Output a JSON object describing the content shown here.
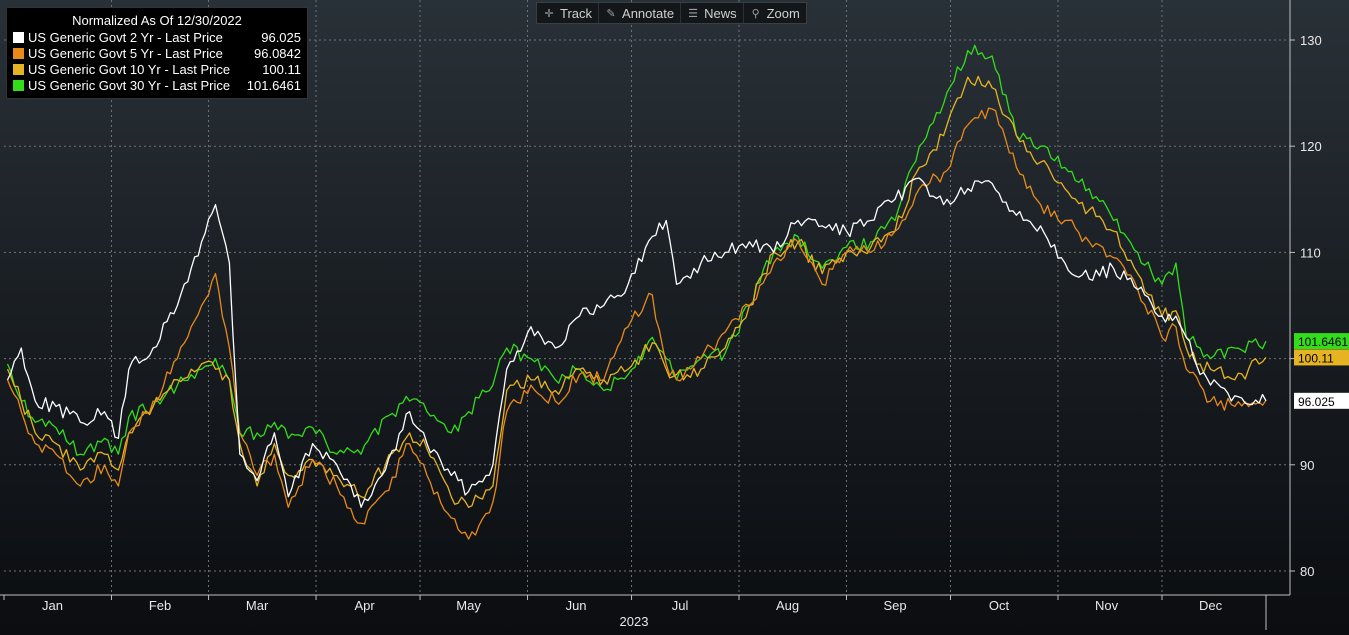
{
  "toolbar": {
    "track_label": "Track",
    "annotate_label": "Annotate",
    "news_label": "News",
    "zoom_label": "Zoom"
  },
  "legend": {
    "title": "Normalized As Of 12/30/2022"
  },
  "colors": {
    "grid": "#6d7479",
    "axis_text": "#e8e8e8",
    "background_top": "#293138",
    "background_bottom": "#0b0d10"
  },
  "chart_data": {
    "type": "line",
    "title": "",
    "xlabel": "2023",
    "ylabel": "",
    "ylim": [
      78,
      134
    ],
    "yticks": [
      80,
      90,
      100,
      110,
      120,
      130
    ],
    "x_range": [
      "2023-01-02",
      "2023-12-31"
    ],
    "x_months": [
      "Jan",
      "Feb",
      "Mar",
      "Apr",
      "May",
      "Jun",
      "Jul",
      "Aug",
      "Sep",
      "Oct",
      "Nov",
      "Dec"
    ],
    "grid": true,
    "legend_position": "top-left",
    "series": [
      {
        "name": "US Generic Govt 2 Yr - Last Price",
        "last_label": "96.025",
        "color": "#ffffff",
        "points": [
          [
            "2023-01-02",
            98
          ],
          [
            "2023-01-06",
            101
          ],
          [
            "2023-01-10",
            96
          ],
          [
            "2023-01-16",
            95.5
          ],
          [
            "2023-01-23",
            94
          ],
          [
            "2023-01-30",
            95
          ],
          [
            "2023-02-03",
            92.5
          ],
          [
            "2023-02-06",
            99
          ],
          [
            "2023-02-13",
            101
          ],
          [
            "2023-02-20",
            105
          ],
          [
            "2023-02-24",
            108.5
          ],
          [
            "2023-02-27",
            111
          ],
          [
            "2023-03-03",
            114.5
          ],
          [
            "2023-03-07",
            109
          ],
          [
            "2023-03-10",
            91
          ],
          [
            "2023-03-15",
            88.5
          ],
          [
            "2023-03-20",
            93
          ],
          [
            "2023-03-24",
            87
          ],
          [
            "2023-03-31",
            92
          ],
          [
            "2023-04-07",
            90
          ],
          [
            "2023-04-14",
            86
          ],
          [
            "2023-04-21",
            89.5
          ],
          [
            "2023-04-28",
            95
          ],
          [
            "2023-05-03",
            92
          ],
          [
            "2023-05-10",
            89
          ],
          [
            "2023-05-15",
            87.5
          ],
          [
            "2023-05-22",
            90
          ],
          [
            "2023-05-26",
            99
          ],
          [
            "2023-06-02",
            103
          ],
          [
            "2023-06-09",
            101
          ],
          [
            "2023-06-16",
            104
          ],
          [
            "2023-06-23",
            105
          ],
          [
            "2023-06-30",
            107
          ],
          [
            "2023-07-07",
            111.5
          ],
          [
            "2023-07-11",
            113
          ],
          [
            "2023-07-14",
            107
          ],
          [
            "2023-07-21",
            109
          ],
          [
            "2023-07-28",
            110
          ],
          [
            "2023-08-04",
            111
          ],
          [
            "2023-08-11",
            110
          ],
          [
            "2023-08-18",
            113
          ],
          [
            "2023-08-25",
            112.5
          ],
          [
            "2023-09-01",
            112
          ],
          [
            "2023-09-08",
            113
          ],
          [
            "2023-09-15",
            115
          ],
          [
            "2023-09-22",
            117
          ],
          [
            "2023-09-29",
            114.5
          ],
          [
            "2023-10-06",
            116
          ],
          [
            "2023-10-13",
            116.5
          ],
          [
            "2023-10-20",
            113.5
          ],
          [
            "2023-10-27",
            112.5
          ],
          [
            "2023-11-03",
            109
          ],
          [
            "2023-11-10",
            107.5
          ],
          [
            "2023-11-17",
            108.5
          ],
          [
            "2023-11-24",
            106.5
          ],
          [
            "2023-12-01",
            104
          ],
          [
            "2023-12-05",
            104
          ],
          [
            "2023-12-08",
            102
          ],
          [
            "2023-12-12",
            98.5
          ],
          [
            "2023-12-15",
            97.5
          ],
          [
            "2023-12-22",
            96.5
          ],
          [
            "2023-12-31",
            96.025
          ]
        ]
      },
      {
        "name": "US Generic Govt 5 Yr - Last Price",
        "last_label": "96.0842",
        "color": "#e88a1a",
        "points": [
          [
            "2023-01-02",
            98
          ],
          [
            "2023-01-06",
            95
          ],
          [
            "2023-01-10",
            92
          ],
          [
            "2023-01-16",
            91
          ],
          [
            "2023-01-23",
            88
          ],
          [
            "2023-01-30",
            90
          ],
          [
            "2023-02-03",
            88
          ],
          [
            "2023-02-06",
            93
          ],
          [
            "2023-02-13",
            96
          ],
          [
            "2023-02-20",
            100
          ],
          [
            "2023-02-24",
            103
          ],
          [
            "2023-02-27",
            105
          ],
          [
            "2023-03-03",
            108
          ],
          [
            "2023-03-07",
            101
          ],
          [
            "2023-03-10",
            93
          ],
          [
            "2023-03-15",
            89
          ],
          [
            "2023-03-20",
            91
          ],
          [
            "2023-03-24",
            86
          ],
          [
            "2023-03-31",
            90.5
          ],
          [
            "2023-04-07",
            88
          ],
          [
            "2023-04-14",
            84.5
          ],
          [
            "2023-04-21",
            87.5
          ],
          [
            "2023-04-28",
            92
          ],
          [
            "2023-05-03",
            89
          ],
          [
            "2023-05-10",
            85
          ],
          [
            "2023-05-15",
            83
          ],
          [
            "2023-05-22",
            86.5
          ],
          [
            "2023-05-26",
            95
          ],
          [
            "2023-06-02",
            97.5
          ],
          [
            "2023-06-09",
            96
          ],
          [
            "2023-06-16",
            98.5
          ],
          [
            "2023-06-23",
            98
          ],
          [
            "2023-06-30",
            103
          ],
          [
            "2023-07-07",
            106
          ],
          [
            "2023-07-11",
            99.5
          ],
          [
            "2023-07-14",
            98
          ],
          [
            "2023-07-21",
            100
          ],
          [
            "2023-07-28",
            102.5
          ],
          [
            "2023-08-04",
            105
          ],
          [
            "2023-08-11",
            109
          ],
          [
            "2023-08-18",
            111
          ],
          [
            "2023-08-25",
            107
          ],
          [
            "2023-09-01",
            110
          ],
          [
            "2023-09-08",
            110
          ],
          [
            "2023-09-15",
            112
          ],
          [
            "2023-09-22",
            116
          ],
          [
            "2023-09-29",
            117.5
          ],
          [
            "2023-10-06",
            122
          ],
          [
            "2023-10-13",
            123.5
          ],
          [
            "2023-10-20",
            118
          ],
          [
            "2023-10-27",
            114.5
          ],
          [
            "2023-11-03",
            113
          ],
          [
            "2023-11-10",
            111
          ],
          [
            "2023-11-17",
            109.5
          ],
          [
            "2023-11-24",
            106.5
          ],
          [
            "2023-12-01",
            102
          ],
          [
            "2023-12-05",
            103
          ],
          [
            "2023-12-08",
            99
          ],
          [
            "2023-12-12",
            97.5
          ],
          [
            "2023-12-15",
            96
          ],
          [
            "2023-12-22",
            95.5
          ],
          [
            "2023-12-31",
            96.0842
          ]
        ]
      },
      {
        "name": "US Generic Govt 10 Yr - Last Price",
        "last_label": "100.11",
        "color": "#e6b422",
        "points": [
          [
            "2023-01-02",
            99
          ],
          [
            "2023-01-06",
            96
          ],
          [
            "2023-01-10",
            93
          ],
          [
            "2023-01-16",
            92
          ],
          [
            "2023-01-23",
            89.5
          ],
          [
            "2023-01-30",
            91
          ],
          [
            "2023-02-03",
            89.5
          ],
          [
            "2023-02-06",
            93
          ],
          [
            "2023-02-13",
            95.5
          ],
          [
            "2023-02-20",
            98
          ],
          [
            "2023-02-24",
            99
          ],
          [
            "2023-02-27",
            99.5
          ],
          [
            "2023-03-03",
            99
          ],
          [
            "2023-03-07",
            98
          ],
          [
            "2023-03-10",
            92
          ],
          [
            "2023-03-15",
            88
          ],
          [
            "2023-03-20",
            92
          ],
          [
            "2023-03-24",
            89
          ],
          [
            "2023-03-31",
            90.5
          ],
          [
            "2023-04-07",
            89
          ],
          [
            "2023-04-14",
            87
          ],
          [
            "2023-04-21",
            90
          ],
          [
            "2023-04-28",
            93
          ],
          [
            "2023-05-03",
            91.5
          ],
          [
            "2023-05-10",
            87
          ],
          [
            "2023-05-15",
            86
          ],
          [
            "2023-05-22",
            88
          ],
          [
            "2023-05-26",
            97
          ],
          [
            "2023-06-02",
            98
          ],
          [
            "2023-06-09",
            97
          ],
          [
            "2023-06-16",
            99
          ],
          [
            "2023-06-23",
            98
          ],
          [
            "2023-06-30",
            99
          ],
          [
            "2023-07-07",
            101.5
          ],
          [
            "2023-07-11",
            99
          ],
          [
            "2023-07-14",
            98.5
          ],
          [
            "2023-07-21",
            99
          ],
          [
            "2023-07-28",
            101
          ],
          [
            "2023-08-04",
            105
          ],
          [
            "2023-08-11",
            110
          ],
          [
            "2023-08-18",
            111
          ],
          [
            "2023-08-25",
            108
          ],
          [
            "2023-09-01",
            110
          ],
          [
            "2023-09-08",
            110.5
          ],
          [
            "2023-09-15",
            112
          ],
          [
            "2023-09-22",
            118
          ],
          [
            "2023-09-29",
            121
          ],
          [
            "2023-10-06",
            126.5
          ],
          [
            "2023-10-13",
            125.5
          ],
          [
            "2023-10-20",
            121
          ],
          [
            "2023-10-27",
            118.5
          ],
          [
            "2023-11-03",
            116
          ],
          [
            "2023-11-10",
            114
          ],
          [
            "2023-11-17",
            112
          ],
          [
            "2023-11-24",
            108
          ],
          [
            "2023-12-01",
            104
          ],
          [
            "2023-12-05",
            104.5
          ],
          [
            "2023-12-08",
            101
          ],
          [
            "2023-12-12",
            99.5
          ],
          [
            "2023-12-15",
            99
          ],
          [
            "2023-12-22",
            98
          ],
          [
            "2023-12-31",
            100.11
          ]
        ]
      },
      {
        "name": "US Generic Govt 30 Yr - Last Price",
        "last_label": "101.6461",
        "color": "#33dd1a",
        "points": [
          [
            "2023-01-02",
            99.5
          ],
          [
            "2023-01-06",
            96
          ],
          [
            "2023-01-10",
            94
          ],
          [
            "2023-01-16",
            93.5
          ],
          [
            "2023-01-23",
            91
          ],
          [
            "2023-01-30",
            92.5
          ],
          [
            "2023-02-03",
            91
          ],
          [
            "2023-02-06",
            94.5
          ],
          [
            "2023-02-13",
            95.5
          ],
          [
            "2023-02-20",
            97.5
          ],
          [
            "2023-02-24",
            98.5
          ],
          [
            "2023-02-27",
            99
          ],
          [
            "2023-03-03",
            100
          ],
          [
            "2023-03-07",
            98
          ],
          [
            "2023-03-10",
            93
          ],
          [
            "2023-03-15",
            93
          ],
          [
            "2023-03-20",
            94
          ],
          [
            "2023-03-24",
            92.5
          ],
          [
            "2023-03-31",
            93.5
          ],
          [
            "2023-04-07",
            91
          ],
          [
            "2023-04-14",
            91
          ],
          [
            "2023-04-21",
            94.5
          ],
          [
            "2023-04-28",
            96
          ],
          [
            "2023-05-03",
            95
          ],
          [
            "2023-05-10",
            93
          ],
          [
            "2023-05-15",
            95
          ],
          [
            "2023-05-22",
            97.5
          ],
          [
            "2023-05-26",
            101
          ],
          [
            "2023-06-02",
            100
          ],
          [
            "2023-06-09",
            98
          ],
          [
            "2023-06-16",
            99
          ],
          [
            "2023-06-23",
            97
          ],
          [
            "2023-06-30",
            98.5
          ],
          [
            "2023-07-07",
            102
          ],
          [
            "2023-07-11",
            100
          ],
          [
            "2023-07-14",
            98
          ],
          [
            "2023-07-21",
            100
          ],
          [
            "2023-07-28",
            100.5
          ],
          [
            "2023-08-04",
            105
          ],
          [
            "2023-08-11",
            110
          ],
          [
            "2023-08-18",
            111.5
          ],
          [
            "2023-08-25",
            108.5
          ],
          [
            "2023-09-01",
            110.5
          ],
          [
            "2023-09-08",
            111
          ],
          [
            "2023-09-15",
            113
          ],
          [
            "2023-09-22",
            120
          ],
          [
            "2023-09-29",
            124
          ],
          [
            "2023-10-06",
            129
          ],
          [
            "2023-10-13",
            128.5
          ],
          [
            "2023-10-20",
            121
          ],
          [
            "2023-10-27",
            120
          ],
          [
            "2023-11-03",
            118
          ],
          [
            "2023-11-10",
            116
          ],
          [
            "2023-11-17",
            113
          ],
          [
            "2023-11-24",
            110
          ],
          [
            "2023-12-01",
            107
          ],
          [
            "2023-12-05",
            109
          ],
          [
            "2023-12-08",
            102
          ],
          [
            "2023-12-12",
            101
          ],
          [
            "2023-12-15",
            100
          ],
          [
            "2023-12-22",
            101
          ],
          [
            "2023-12-31",
            101.6461
          ]
        ]
      }
    ]
  }
}
